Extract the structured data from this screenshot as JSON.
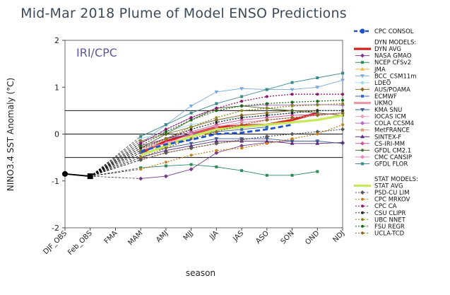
{
  "chart_data": {
    "type": "line",
    "title": "Mid-Mar 2018 Plume of Model ENSO Predictions",
    "inset_label": "IRI/CPC",
    "xlabel": "season",
    "ylabel": "NINO3.4 SST Anomaly (°C)",
    "ylim": [
      -2,
      2
    ],
    "yticks": [
      -2,
      -1,
      0,
      1,
      2
    ],
    "reference_lines": [
      -0.5,
      0,
      0.5
    ],
    "categories": [
      "DJF_OBS",
      "Feb_OBS",
      "FMA",
      "MAM",
      "AMJ",
      "MJJ",
      "JJA",
      "JAS",
      "ASO",
      "SON",
      "OND",
      "NDJ"
    ],
    "observed": {
      "name": "OBS",
      "values": [
        -0.85,
        -0.9
      ]
    },
    "dyn_models_label": "DYN MODELS:",
    "stat_models_label": "STAT MODELS:",
    "cpc_consol": {
      "name": "CPC CONSOL",
      "color": "#1f55c8",
      "values": [
        null,
        null,
        null,
        -0.37,
        -0.22,
        -0.12,
        0.0,
        0.03,
        0.1,
        0.2,
        null,
        null
      ]
    },
    "dyn_models": [
      {
        "name": "DYN AVG",
        "color": "#d62020",
        "marker": "line",
        "values": [
          null,
          null,
          null,
          -0.4,
          -0.15,
          0.0,
          0.15,
          0.18,
          0.2,
          0.3,
          0.45,
          null
        ]
      },
      {
        "name": "NASA GMAO",
        "color": "#7a3a8a",
        "marker": "diamond",
        "values": [
          null,
          null,
          null,
          -0.95,
          -0.9,
          -0.75,
          -0.4,
          -0.25,
          -0.18,
          -0.15,
          -0.15,
          null
        ]
      },
      {
        "name": "NCEP CFSv2",
        "color": "#2a8a5a",
        "marker": "square",
        "values": [
          null,
          null,
          null,
          -0.72,
          -0.68,
          -0.65,
          -0.7,
          -0.78,
          -0.88,
          -0.88,
          -0.8,
          null
        ]
      },
      {
        "name": "JMA",
        "color": "#e8b84a",
        "marker": "triangle",
        "values": [
          null,
          null,
          null,
          -0.35,
          -0.2,
          -0.05,
          0.05,
          0.1,
          0.15,
          null,
          null,
          null
        ]
      },
      {
        "name": "BCC_CSM11m",
        "color": "#7aa8dc",
        "marker": "triangle-down",
        "values": [
          null,
          null,
          null,
          -0.2,
          0.2,
          0.6,
          0.9,
          0.97,
          0.95,
          0.95,
          1.0,
          1.15
        ]
      },
      {
        "name": "LDEO",
        "color": "#a8d8e8",
        "marker": "diamond",
        "values": [
          null,
          null,
          null,
          -0.1,
          0.05,
          0.2,
          0.3,
          0.35,
          0.4,
          0.45,
          0.5,
          0.5
        ]
      },
      {
        "name": "AUS/POAMA",
        "color": "#8a6a2a",
        "marker": "diamond",
        "values": [
          null,
          null,
          null,
          -0.15,
          0.0,
          0.15,
          0.3,
          0.4,
          0.45,
          0.5,
          0.5,
          null
        ]
      },
      {
        "name": "ECMWF",
        "color": "#3a6ab8",
        "marker": "square",
        "values": [
          null,
          null,
          null,
          -0.25,
          -0.1,
          0.0,
          0.05,
          0.1,
          0.15,
          null,
          null,
          null
        ]
      },
      {
        "name": "UKMO",
        "color": "#e89aa8",
        "marker": "line",
        "values": [
          null,
          null,
          null,
          -0.3,
          -0.1,
          0.1,
          null,
          null,
          null,
          null,
          null,
          null
        ]
      },
      {
        "name": "KMA SNU",
        "color": "#3a5a9a",
        "marker": "triangle-down",
        "values": [
          null,
          null,
          null,
          -0.4,
          -0.3,
          -0.2,
          -0.1,
          -0.1,
          -0.1,
          -0.15,
          -0.15,
          -0.2
        ]
      },
      {
        "name": "IOCAS ICM",
        "color": "#e8a0c0",
        "marker": "diamond",
        "values": [
          null,
          null,
          null,
          -0.3,
          -0.2,
          -0.05,
          0.1,
          0.2,
          0.3,
          0.35,
          0.4,
          0.45
        ]
      },
      {
        "name": "COLA CCSM4",
        "color": "#b06ac8",
        "marker": "diamond",
        "values": [
          null,
          null,
          null,
          -0.2,
          0.1,
          0.35,
          0.55,
          0.6,
          0.62,
          0.62,
          0.63,
          0.62
        ]
      },
      {
        "name": "MetFRANCE",
        "color": "#d8a07a",
        "marker": "square",
        "values": [
          null,
          null,
          null,
          -0.55,
          -0.4,
          -0.3,
          -0.2,
          -0.15,
          null,
          null,
          null,
          null
        ]
      },
      {
        "name": "SINTEX-F",
        "color": "#5a2a7a",
        "marker": "triangle",
        "values": [
          null,
          null,
          null,
          -0.5,
          -0.35,
          -0.25,
          -0.15,
          -0.15,
          -0.15,
          -0.2,
          -0.2,
          -0.18
        ]
      },
      {
        "name": "CS-IRI-MM",
        "color": "#c85a9a",
        "marker": "diamond",
        "values": [
          null,
          null,
          null,
          -0.25,
          -0.1,
          0.05,
          0.2,
          0.3,
          0.35,
          0.4,
          0.42,
          0.45
        ]
      },
      {
        "name": "GFDL CM2.1",
        "color": "#4a6a2a",
        "marker": "circle",
        "values": [
          null,
          null,
          null,
          -0.3,
          0.0,
          0.3,
          0.55,
          0.6,
          0.55,
          0.5,
          0.45,
          0.4
        ]
      },
      {
        "name": "CMC CANSIP",
        "color": "#e888b8",
        "marker": "diamond",
        "values": [
          null,
          null,
          null,
          -0.35,
          -0.2,
          0.0,
          0.15,
          0.25,
          0.3,
          0.35,
          0.4,
          0.45
        ]
      },
      {
        "name": "GFDL FLOR",
        "color": "#3a8a8a",
        "marker": "square",
        "values": [
          null,
          null,
          null,
          -0.05,
          0.2,
          0.45,
          0.65,
          0.8,
          0.95,
          1.1,
          1.2,
          1.3
        ]
      }
    ],
    "stat_models": [
      {
        "name": "STAT AVG",
        "color": "#c8e85a",
        "marker": "line",
        "values": [
          null,
          null,
          null,
          -0.45,
          -0.25,
          -0.05,
          0.1,
          0.15,
          0.2,
          0.25,
          0.3,
          0.4
        ]
      },
      {
        "name": "PSD-CU LIM",
        "color": "#5a5a5a",
        "marker": "diamond",
        "values": [
          null,
          null,
          null,
          -0.55,
          -0.4,
          -0.3,
          -0.2,
          -0.12,
          -0.05,
          0.0,
          0.05,
          0.1
        ]
      },
      {
        "name": "CPC MRKOV",
        "color": "#c8801a",
        "marker": "circle",
        "values": [
          null,
          null,
          null,
          -0.75,
          -0.6,
          -0.45,
          -0.35,
          -0.3,
          -0.2,
          -0.1,
          0.0,
          0.2
        ]
      },
      {
        "name": "CPC CA",
        "color": "#8a1a6a",
        "marker": "circle",
        "values": [
          null,
          null,
          null,
          -0.2,
          0.1,
          0.35,
          0.55,
          0.7,
          0.8,
          0.85,
          0.85,
          0.85
        ]
      },
      {
        "name": "CSU CLIPR",
        "color": "#2a2a2a",
        "marker": "circle",
        "values": [
          null,
          null,
          null,
          -0.3,
          -0.1,
          0.1,
          0.25,
          0.35,
          0.4,
          0.45,
          0.5,
          0.5
        ]
      },
      {
        "name": "UBC NNET",
        "color": "#8a8a1a",
        "marker": "circle",
        "values": [
          null,
          null,
          null,
          -0.35,
          -0.1,
          0.15,
          0.35,
          0.5,
          0.55,
          0.6,
          0.62,
          0.65
        ]
      },
      {
        "name": "FSU REGR",
        "color": "#1a6a1a",
        "marker": "circle",
        "values": [
          null,
          null,
          null,
          -0.25,
          0.05,
          0.3,
          0.5,
          0.6,
          0.65,
          0.68,
          0.7,
          0.72
        ]
      },
      {
        "name": "UCLA-TCD",
        "color": "#8a6a1a",
        "marker": "circle",
        "values": [
          null,
          null,
          null,
          -0.5,
          -0.3,
          -0.1,
          0.05,
          0.2,
          0.3,
          0.35,
          0.4,
          0.45
        ]
      }
    ]
  }
}
